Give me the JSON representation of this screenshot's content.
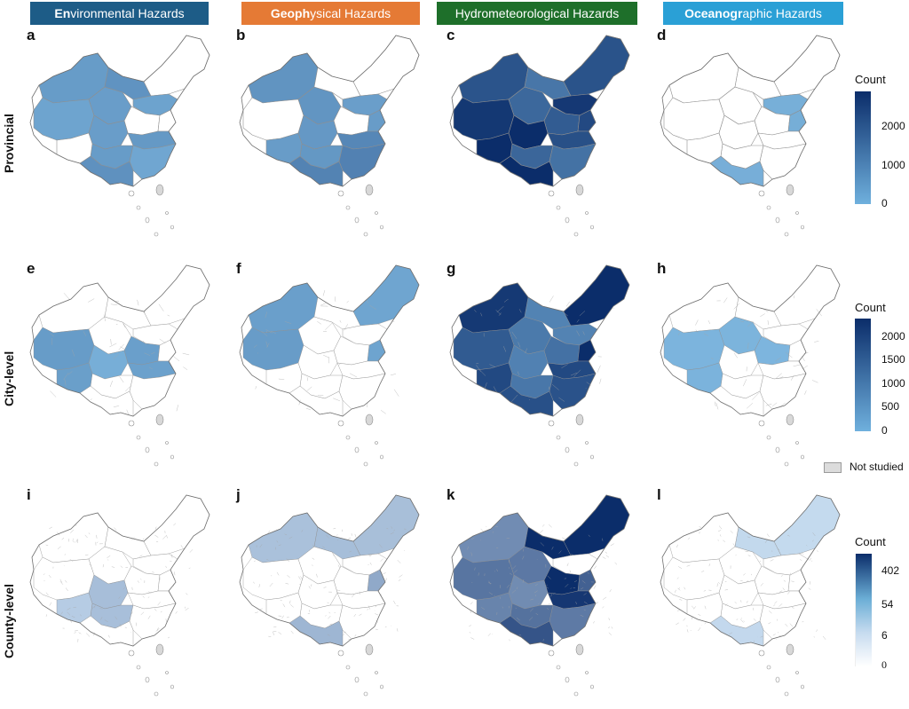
{
  "headers": [
    {
      "bold": "En",
      "rest": "vironmental Hazards",
      "color": "#1d5c87"
    },
    {
      "bold": "Geoph",
      "rest": "ysical Hazards",
      "color": "#e57a35"
    },
    {
      "bold": "",
      "rest": "Hydrometeorological Hazards",
      "color": "#1e6f2a"
    },
    {
      "bold": "Oceanogr",
      "rest": "aphic Hazards",
      "color": "#2aa0d6"
    }
  ],
  "rows": [
    {
      "label": "Provincial",
      "letters": [
        "a",
        "b",
        "c",
        "d"
      ]
    },
    {
      "label": "City-level",
      "letters": [
        "e",
        "f",
        "g",
        "h"
      ]
    },
    {
      "label": "County-level",
      "letters": [
        "i",
        "j",
        "k",
        "l"
      ]
    }
  ],
  "legends": [
    {
      "title": "Count",
      "ticks": [
        "2000",
        "1000",
        "0"
      ],
      "from": "#6fb0dd",
      "to": "#0b2d6a"
    },
    {
      "title": "Count",
      "ticks": [
        "2000",
        "1500",
        "1000",
        "500",
        "0"
      ],
      "from": "#6fb0dd",
      "to": "#0b2d6a"
    },
    {
      "title": "Count",
      "ticks": [
        "402",
        "54",
        "6",
        "0"
      ],
      "from": "#ffffff",
      "to": "#0b2d6a"
    }
  ],
  "not_studied": {
    "label": "Not studied",
    "color": "#dcdcdc"
  },
  "fill_levels": {
    "note_hidden": true,
    "values": [
      [
        0.35,
        0.5,
        0.8,
        0.15
      ],
      [
        0.25,
        0.3,
        0.75,
        0.05
      ],
      [
        0.3,
        0.35,
        0.9,
        0.02
      ]
    ]
  }
}
